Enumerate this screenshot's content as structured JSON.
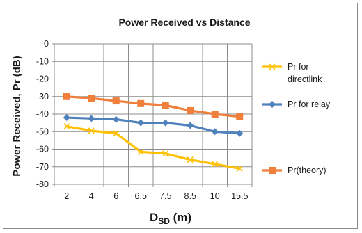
{
  "chart_data": {
    "type": "line",
    "title": "Power Received vs Distance",
    "xlabel": "D",
    "xlabel_sub": "SD",
    "xlabel_unit": " (m)",
    "ylabel": "Power Received, Pr (dB)",
    "categories": [
      "2",
      "4",
      "6",
      "6.5",
      "7.5",
      "8.5",
      "10",
      "15.5"
    ],
    "ylim": [
      -80,
      0
    ],
    "yticks": [
      0,
      -10,
      -20,
      -30,
      -40,
      -50,
      -60,
      -70,
      -80
    ],
    "grid": true,
    "legend_position": "right",
    "series": [
      {
        "name": "Pr for directlink",
        "legend_lines": [
          "Pr for",
          "directlink"
        ],
        "color": "#ffc000",
        "marker": "x",
        "values": [
          -47,
          -49.5,
          -51,
          -61.5,
          -62.5,
          -66,
          -68.5,
          -71
        ]
      },
      {
        "name": "Pr for relay",
        "legend_lines": [
          "Pr for relay"
        ],
        "color": "#4f81bd",
        "marker": "diamond",
        "values": [
          -42,
          -42.5,
          -43,
          -45,
          -45,
          -46.5,
          -50,
          -51
        ]
      },
      {
        "name": "Pr(theory)",
        "legend_lines": [
          "Pr(theory)"
        ],
        "color": "#f07f3c",
        "marker": "square",
        "values": [
          -30,
          -31,
          -32.5,
          -34,
          -35,
          -38,
          -40,
          -41.5
        ]
      }
    ]
  }
}
